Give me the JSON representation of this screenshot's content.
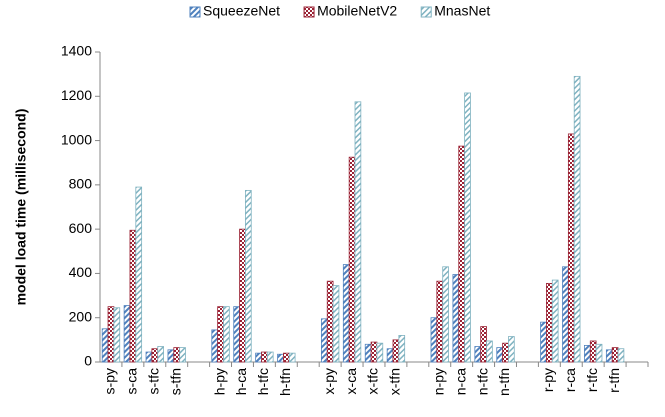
{
  "chart_data": {
    "type": "bar",
    "y_label": "model load time (millisecond)",
    "categories": [
      "s-py",
      "s-ca",
      "s-tfc",
      "s-tfn",
      null,
      "h-py",
      "h-ca",
      "h-tfc",
      "h-tfn",
      null,
      "x-py",
      "x-ca",
      "x-tfc",
      "x-tfn",
      null,
      "n-py",
      "n-ca",
      "n-tfc",
      "n-tfn",
      null,
      "r-py",
      "r-ca",
      "r-tfc",
      "r-tfn",
      null
    ],
    "series": [
      {
        "name": "SqueezeNet",
        "color": "#4f81bd",
        "values": [
          150,
          255,
          45,
          55,
          null,
          145,
          250,
          40,
          35,
          null,
          195,
          440,
          80,
          60,
          null,
          200,
          395,
          70,
          65,
          null,
          180,
          430,
          75,
          55,
          null
        ]
      },
      {
        "name": "MobileNetV2",
        "color": "#9b2335",
        "values": [
          250,
          595,
          60,
          65,
          null,
          250,
          600,
          45,
          40,
          null,
          365,
          925,
          90,
          100,
          null,
          365,
          975,
          160,
          85,
          null,
          355,
          1030,
          95,
          65,
          null
        ]
      },
      {
        "name": "MnasNet",
        "color": "#7fb2c0",
        "values": [
          245,
          790,
          70,
          65,
          null,
          250,
          775,
          45,
          40,
          null,
          345,
          1175,
          85,
          120,
          null,
          430,
          1215,
          95,
          115,
          null,
          370,
          1290,
          80,
          60,
          null
        ]
      }
    ],
    "ylim": [
      0,
      1400
    ],
    "yticks": [
      0,
      200,
      400,
      600,
      800,
      1000,
      1200,
      1400
    ],
    "grid": false,
    "legend": "top"
  }
}
